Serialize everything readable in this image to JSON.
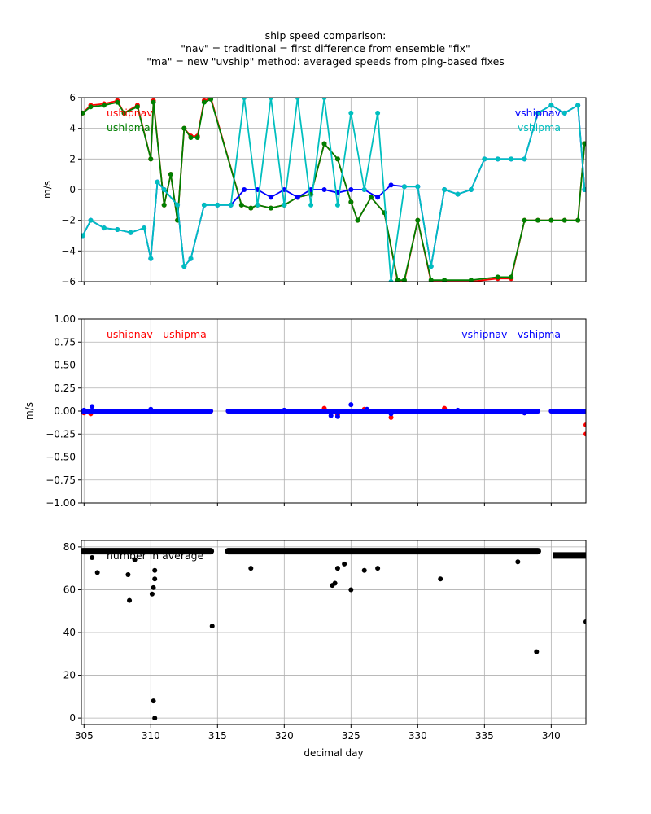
{
  "figure": {
    "title_lines": [
      "ship speed comparison:",
      "\"nav\" = traditional = first difference from ensemble \"fix\"",
      "\"ma\" = new \"uvship\" method: averaged speeds from ping-based fixes"
    ]
  },
  "colors": {
    "ushipnav": "#ff0000",
    "ushipma": "#008000",
    "vshipnav": "#0000ff",
    "vshipma": "#00bfbf",
    "count": "#000000",
    "grid": "#b0b0b0"
  },
  "chart_data": [
    {
      "type": "line",
      "ylabel": "m/s",
      "xlabel": "",
      "xlim": [
        304.8,
        342.6
      ],
      "ylim": [
        -6,
        6
      ],
      "yticks": [
        "6",
        "4",
        "2",
        "0",
        "−2",
        "−4",
        "−6"
      ],
      "grid": true,
      "annotations_left": [
        "ushipnav",
        "ushipma"
      ],
      "annotations_right": [
        "vshipnav",
        "vshipma"
      ],
      "series": [
        {
          "name": "ushipnav",
          "color": "#ff0000",
          "x": [
            304.9,
            305.5,
            306.5,
            307.5,
            308.0,
            309.0,
            310.0,
            310.2,
            311.0,
            311.5,
            312.0,
            312.5,
            313.0,
            313.5,
            314.0,
            314.5,
            316.8,
            317.5,
            318.0,
            319.0,
            320.0,
            321.0,
            322.0,
            323.0,
            324.0,
            325.0,
            325.5,
            326.5,
            327.5,
            328.5,
            329.0,
            330.0,
            331.0,
            332.0,
            334.0,
            336.0,
            337.0,
            338.0,
            339.0,
            340.0,
            341.0,
            342.0,
            342.5
          ],
          "y": [
            5.0,
            5.5,
            5.6,
            5.8,
            5.0,
            5.5,
            2.0,
            5.8,
            -1.0,
            1.0,
            -2.0,
            4.0,
            3.5,
            3.5,
            5.8,
            6.0,
            -1.0,
            -1.2,
            -1.0,
            -1.2,
            -1.0,
            -0.5,
            -0.3,
            3.0,
            2.0,
            -0.8,
            -2.0,
            -0.5,
            -1.5,
            -6.0,
            -6.0,
            -2.0,
            -6.0,
            -6.0,
            -6.0,
            -5.8,
            -5.8,
            -2.0,
            -2.0,
            -2.0,
            -2.0,
            -2.0,
            3.0
          ]
        },
        {
          "name": "ushipma",
          "color": "#008000",
          "x": [
            304.9,
            305.5,
            306.5,
            307.5,
            308.0,
            309.0,
            310.0,
            310.2,
            311.0,
            311.5,
            312.0,
            312.5,
            313.0,
            313.5,
            314.0,
            314.5,
            316.8,
            317.5,
            318.0,
            319.0,
            320.0,
            321.0,
            322.0,
            323.0,
            324.0,
            325.0,
            325.5,
            326.5,
            327.5,
            328.5,
            329.0,
            330.0,
            331.0,
            332.0,
            334.0,
            336.0,
            337.0,
            338.0,
            339.0,
            340.0,
            341.0,
            342.0,
            342.5
          ],
          "y": [
            5.0,
            5.4,
            5.5,
            5.7,
            5.0,
            5.4,
            2.0,
            5.7,
            -1.0,
            1.0,
            -2.0,
            4.0,
            3.4,
            3.4,
            5.7,
            5.9,
            -1.0,
            -1.2,
            -1.0,
            -1.2,
            -1.0,
            -0.5,
            -0.3,
            3.0,
            2.0,
            -0.8,
            -2.0,
            -0.5,
            -1.5,
            -5.9,
            -5.9,
            -2.0,
            -5.9,
            -5.9,
            -5.9,
            -5.7,
            -5.7,
            -2.0,
            -2.0,
            -2.0,
            -2.0,
            -2.0,
            3.0
          ]
        },
        {
          "name": "vshipnav",
          "color": "#0000ff",
          "x": [
            304.9,
            305.5,
            306.5,
            307.5,
            308.5,
            309.5,
            310.0,
            310.5,
            311.0,
            312.0,
            312.5,
            313.0,
            314.0,
            315.0,
            316.0,
            317.0,
            318.0,
            319.0,
            320.0,
            321.0,
            322.0,
            323.0,
            324.0,
            325.0,
            326.0,
            327.0,
            328.0,
            329.0,
            330.0,
            331.0,
            332.0,
            333.0,
            334.0,
            335.0,
            336.0,
            337.0,
            338.0,
            339.0,
            340.0,
            341.0,
            342.0,
            342.5
          ],
          "y": [
            -3.0,
            -2.0,
            -2.5,
            -2.6,
            -2.8,
            -2.5,
            -4.5,
            0.5,
            0.0,
            -1.0,
            -5.0,
            -4.5,
            -1.0,
            -1.0,
            -1.0,
            0.0,
            0.0,
            -0.5,
            0.0,
            -0.5,
            0.0,
            0.0,
            -0.2,
            0.0,
            0.0,
            -0.5,
            0.3,
            0.2,
            0.2,
            -5.0,
            0.0,
            -0.3,
            0.0,
            2.0,
            2.0,
            2.0,
            2.0,
            5.0,
            5.5,
            5.0,
            5.5,
            0.0
          ]
        },
        {
          "name": "vshipma",
          "color": "#00bfbf",
          "x": [
            304.9,
            305.5,
            306.5,
            307.5,
            308.5,
            309.5,
            310.0,
            310.5,
            311.0,
            312.0,
            312.5,
            313.0,
            314.0,
            315.0,
            316.0,
            317.0,
            318.0,
            319.0,
            320.0,
            321.0,
            322.0,
            323.0,
            324.0,
            325.0,
            326.0,
            327.0,
            328.0,
            329.0,
            330.0,
            331.0,
            332.0,
            333.0,
            334.0,
            335.0,
            336.0,
            337.0,
            338.0,
            339.0,
            340.0,
            341.0,
            342.0,
            342.5
          ],
          "y": [
            -3.0,
            -2.0,
            -2.5,
            -2.6,
            -2.8,
            -2.5,
            -4.5,
            0.5,
            0.0,
            -1.0,
            -5.0,
            -4.5,
            -1.0,
            -1.0,
            -1.0,
            6.0,
            -1.0,
            6.0,
            -1.0,
            6.0,
            -1.0,
            6.0,
            -1.0,
            5.0,
            0.0,
            5.0,
            -6.0,
            0.2,
            0.2,
            -5.0,
            0.0,
            -0.3,
            0.0,
            2.0,
            2.0,
            2.0,
            2.0,
            5.0,
            5.5,
            5.0,
            5.5,
            0.0
          ]
        }
      ]
    },
    {
      "type": "scatter",
      "ylabel": "m/s",
      "xlabel": "",
      "xlim": [
        304.8,
        342.6
      ],
      "ylim": [
        -1.0,
        1.0
      ],
      "yticks": [
        "1.00",
        "0.75",
        "0.50",
        "0.25",
        "0.00",
        "−0.25",
        "−0.50",
        "−0.75",
        "−1.00"
      ],
      "grid": true,
      "annotations_left": [
        "ushipnav - ushipma"
      ],
      "annotations_right": [
        "vshipnav - vshipma"
      ],
      "series": [
        {
          "name": "ushipnav - ushipma",
          "color": "#ff0000",
          "x": [
            305.0,
            305.5,
            310.0,
            314.0,
            323.0,
            324.0,
            326.0,
            328.0,
            332.0,
            338.0,
            342.6,
            342.6
          ],
          "y": [
            -0.02,
            -0.03,
            0.01,
            0.0,
            0.03,
            -0.04,
            0.02,
            -0.07,
            0.03,
            -0.02,
            -0.15,
            -0.25
          ]
        },
        {
          "name": "vshipnav - vshipma",
          "color": "#0000ff",
          "x": [
            305.0,
            305.6,
            310.0,
            316.0,
            320.0,
            323.5,
            324.0,
            325.0,
            326.2,
            328.0,
            333.0,
            338.0,
            342.6
          ],
          "y": [
            0.01,
            0.05,
            0.02,
            0.0,
            0.01,
            -0.05,
            -0.06,
            0.07,
            0.02,
            -0.03,
            0.01,
            -0.02,
            0.0
          ]
        }
      ]
    },
    {
      "type": "scatter",
      "ylabel": "",
      "xlabel": "decimal day",
      "xlim": [
        304.8,
        342.6
      ],
      "ylim": [
        -3,
        83
      ],
      "yticks": [
        "0",
        "20",
        "40",
        "60",
        "80"
      ],
      "xticks": [
        "305",
        "310",
        "315",
        "320",
        "325",
        "330",
        "335",
        "340"
      ],
      "grid": true,
      "annotations_left": [
        "number in average"
      ],
      "series": [
        {
          "name": "number in average",
          "color": "#000000",
          "x": [
            305.6,
            306.0,
            308.3,
            308.4,
            308.8,
            310.1,
            310.2,
            310.3,
            310.3,
            310.2,
            310.3,
            314.6,
            317.5,
            323.6,
            323.8,
            324.0,
            324.5,
            325.0,
            326.0,
            327.0,
            331.7,
            337.5,
            338.9,
            342.6
          ],
          "y": [
            75,
            68,
            67,
            55,
            74,
            58,
            61,
            65,
            69,
            8,
            0,
            43,
            70,
            62,
            63,
            70,
            72,
            60,
            69,
            70,
            65,
            73,
            31,
            45
          ]
        }
      ]
    }
  ]
}
